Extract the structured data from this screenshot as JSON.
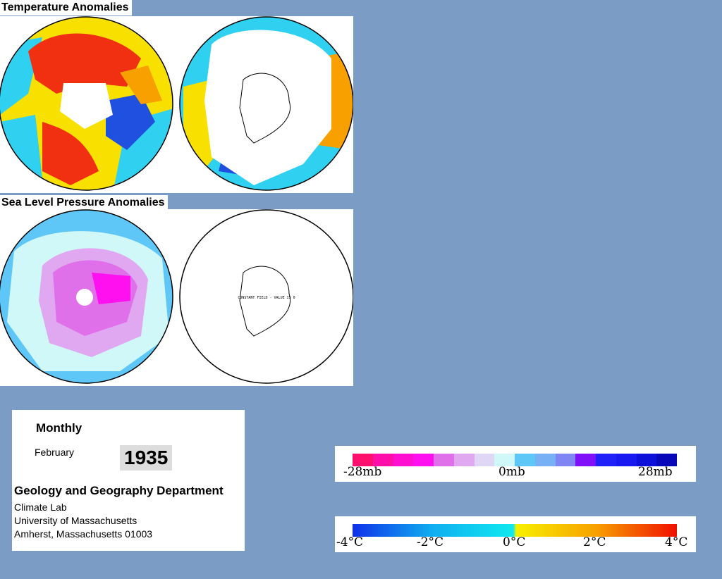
{
  "temperature_title": "Temperature Anomalies",
  "pressure_title": "Sea Level Pressure Anomalies",
  "constant_field_label": "CONSTANT FIELD - VALUE IS 0",
  "info": {
    "period": "Monthly",
    "month": "February",
    "year": "1935",
    "department": "Geology and Geography Department",
    "lab": "Climate Lab",
    "university": "University of Massachusetts",
    "address": "Amherst, Massachusetts 01003"
  },
  "pressure_legend": {
    "labels": [
      "-28mb",
      "0mb",
      "28mb"
    ],
    "colors": [
      "#ff0f6e",
      "#ff0fa8",
      "#ff10d0",
      "#ff10ee",
      "#e070ea",
      "#e0a8f0",
      "#ded8f6",
      "#d0f8f8",
      "#5fc6f8",
      "#78b0f6",
      "#7f86f4",
      "#7f10f8",
      "#2020f8",
      "#1818f0",
      "#0c10d8",
      "#0808b8"
    ]
  },
  "temperature_legend": {
    "labels": [
      "-4°C",
      "-2°C",
      "0°C",
      "2°C",
      "4°C"
    ],
    "colors": [
      "#1030e8",
      "#10b0f0",
      "#10e8f0",
      "#f8f000",
      "#f8a000",
      "#f01000"
    ]
  }
}
